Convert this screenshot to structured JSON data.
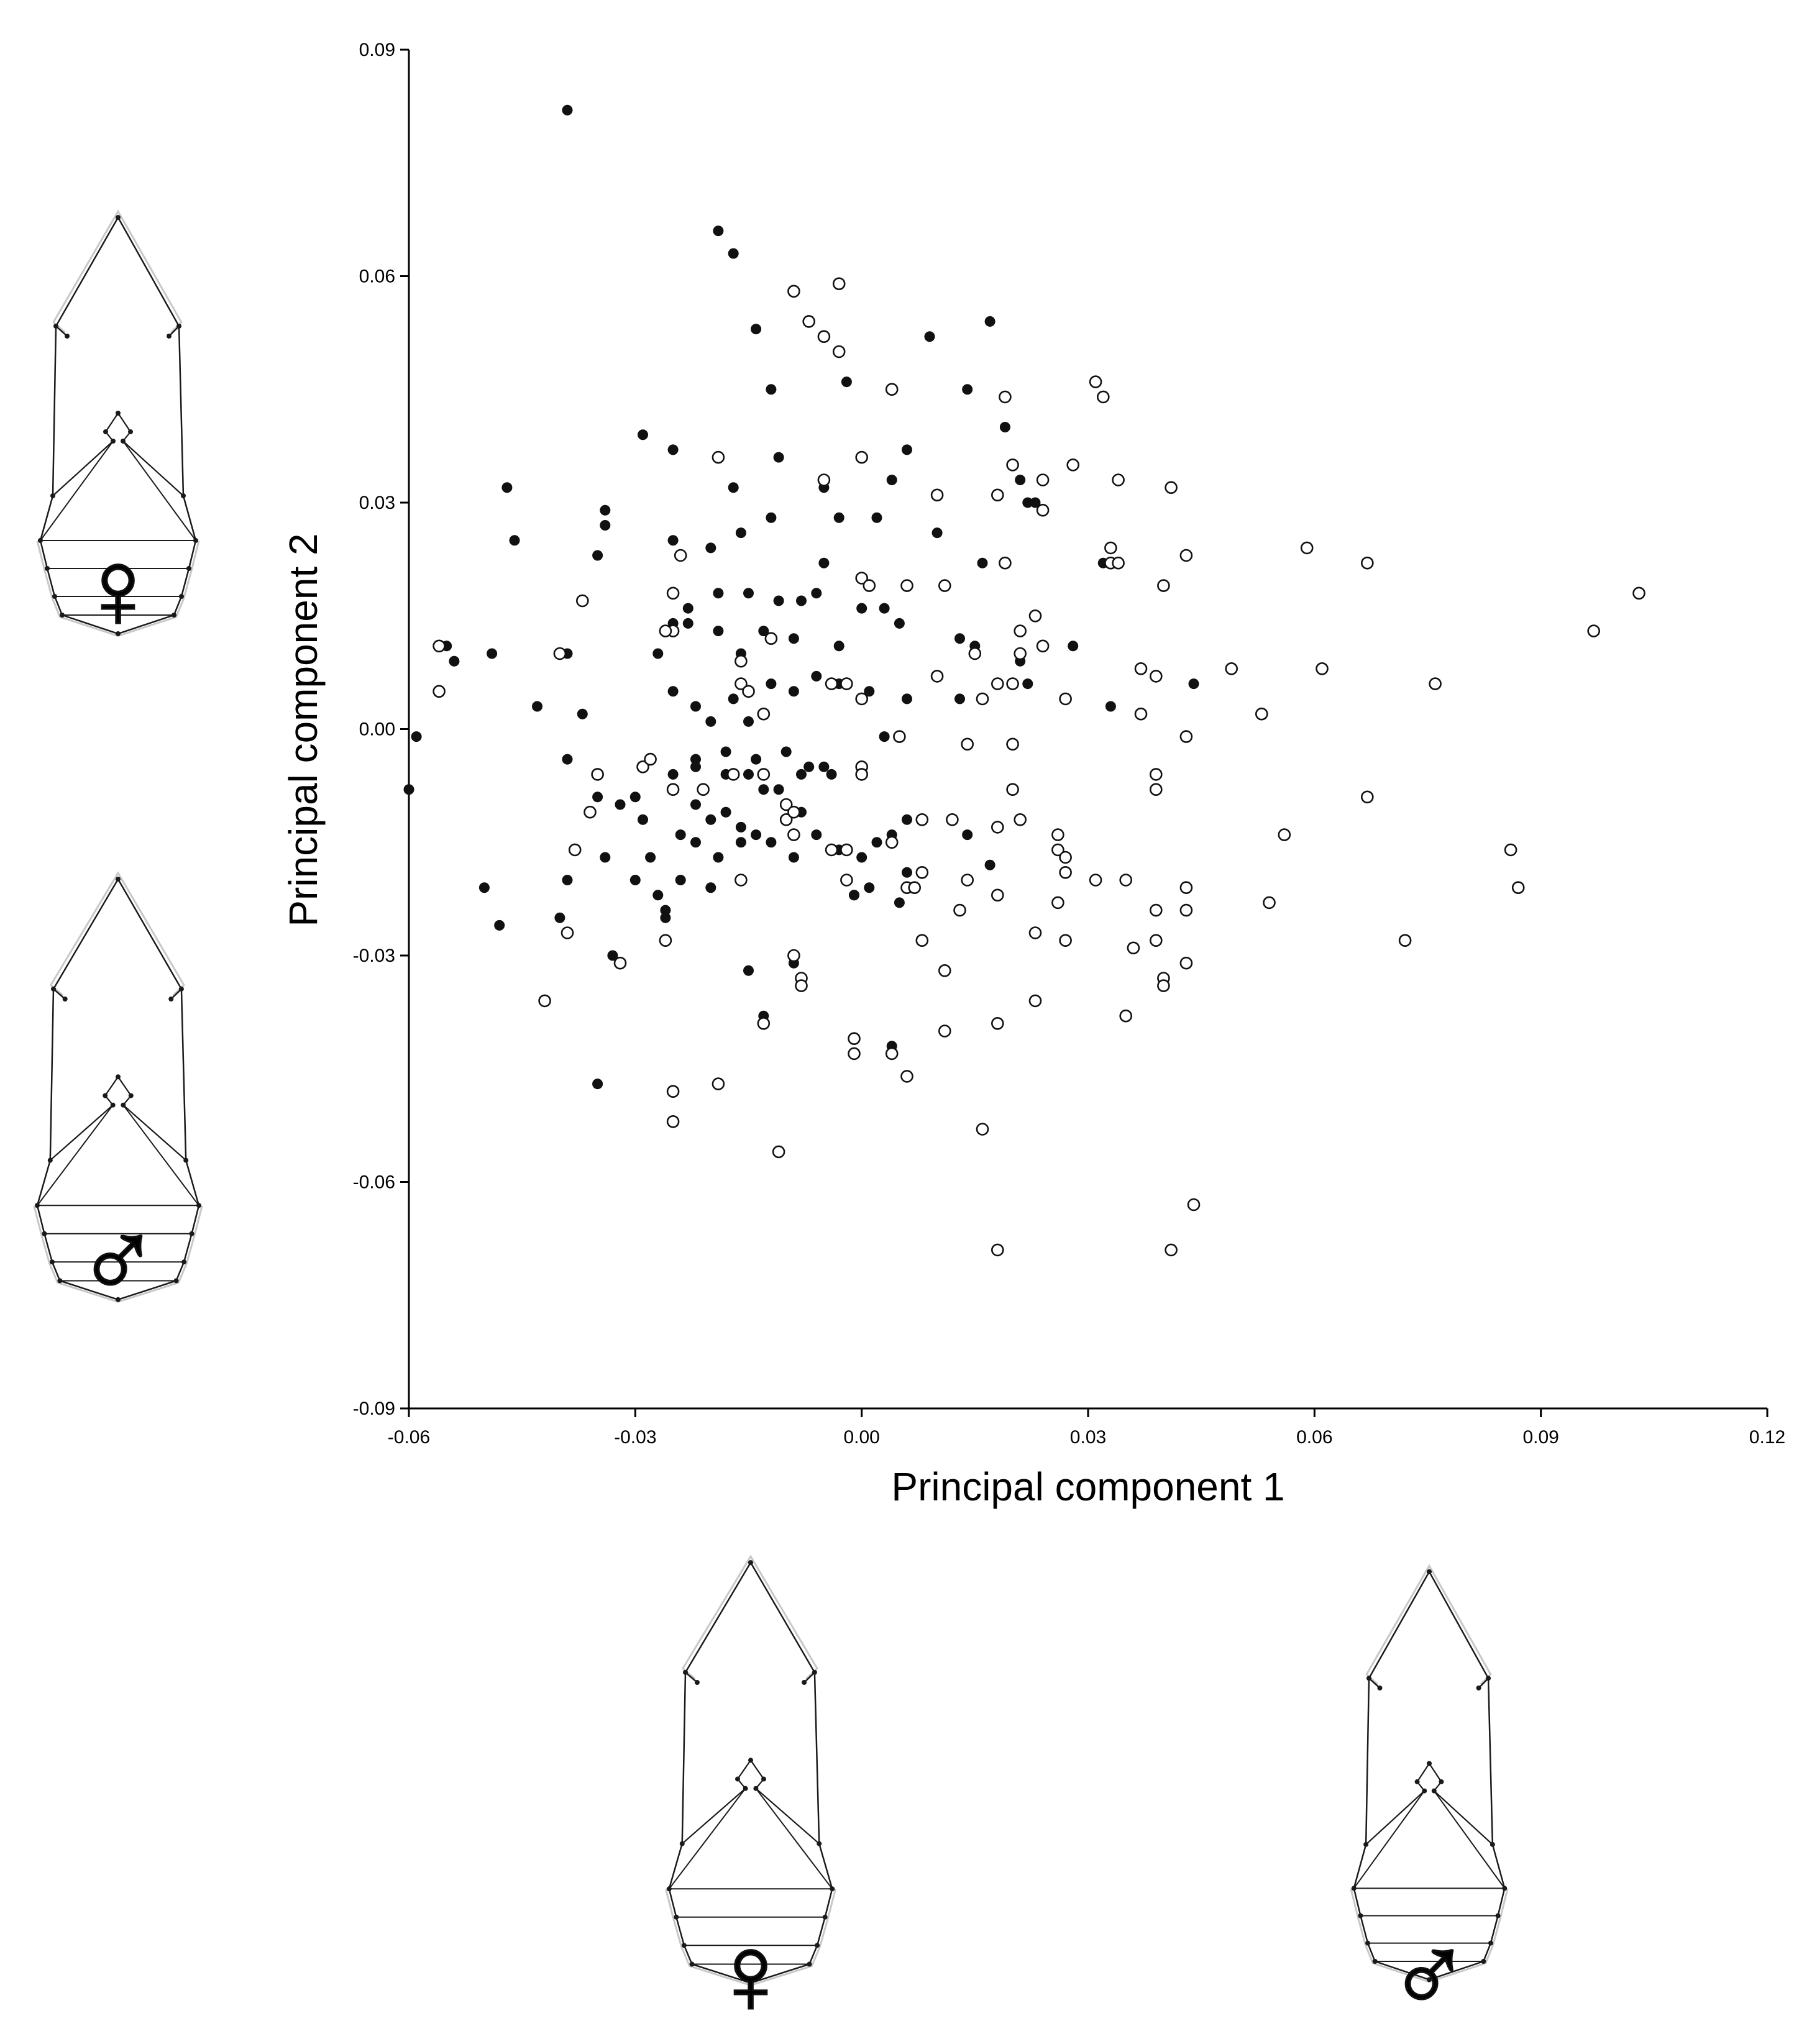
{
  "chart_data": {
    "type": "scatter",
    "title": "",
    "xlabel": "Principal component 1",
    "ylabel": "Principal component 2",
    "xlim": [
      -0.06,
      0.12
    ],
    "ylim": [
      -0.09,
      0.09
    ],
    "x_ticks": [
      "-0.06",
      "-0.03",
      "0.00",
      "0.03",
      "0.06",
      "0.09",
      "0.12"
    ],
    "y_ticks": [
      "0.09",
      "0.06",
      "0.03",
      "0.00",
      "-0.03",
      "-0.06",
      "-0.09"
    ],
    "grid": false,
    "legend": "none",
    "series": [
      {
        "marker": "filled-circle",
        "color": "#111111",
        "points": [
          [
            -0.039,
            0.082
          ],
          [
            -0.019,
            0.066
          ],
          [
            -0.017,
            0.063
          ],
          [
            -0.014,
            0.053
          ],
          [
            -0.012,
            0.045
          ],
          [
            0.009,
            0.052
          ],
          [
            0.017,
            0.054
          ],
          [
            -0.002,
            0.046
          ],
          [
            0.014,
            0.045
          ],
          [
            0.019,
            0.04
          ],
          [
            0.028,
            0.035
          ],
          [
            0.006,
            0.037
          ],
          [
            -0.011,
            0.036
          ],
          [
            0.021,
            0.033
          ],
          [
            0.022,
            0.03
          ],
          [
            -0.029,
            0.039
          ],
          [
            -0.025,
            0.037
          ],
          [
            -0.047,
            0.032
          ],
          [
            -0.046,
            0.025
          ],
          [
            -0.034,
            0.029
          ],
          [
            -0.034,
            0.027
          ],
          [
            -0.035,
            0.023
          ],
          [
            -0.017,
            0.032
          ],
          [
            -0.016,
            0.026
          ],
          [
            -0.02,
            0.024
          ],
          [
            -0.025,
            0.025
          ],
          [
            -0.012,
            0.028
          ],
          [
            -0.005,
            0.032
          ],
          [
            -0.003,
            0.028
          ],
          [
            0.002,
            0.028
          ],
          [
            0.004,
            0.033
          ],
          [
            0.01,
            0.026
          ],
          [
            0.016,
            0.022
          ],
          [
            0.023,
            0.03
          ],
          [
            0.032,
            0.022
          ],
          [
            -0.005,
            0.022
          ],
          [
            -0.008,
            0.017
          ],
          [
            -0.011,
            0.017
          ],
          [
            -0.015,
            0.018
          ],
          [
            -0.019,
            0.018
          ],
          [
            -0.023,
            0.016
          ],
          [
            -0.027,
            0.01
          ],
          [
            -0.025,
            0.014
          ],
          [
            -0.023,
            0.014
          ],
          [
            -0.019,
            0.013
          ],
          [
            -0.016,
            0.01
          ],
          [
            -0.013,
            0.013
          ],
          [
            -0.009,
            0.012
          ],
          [
            -0.006,
            0.018
          ],
          [
            -0.003,
            0.011
          ],
          [
            0.0,
            0.016
          ],
          [
            0.003,
            0.016
          ],
          [
            0.005,
            0.014
          ],
          [
            0.006,
            0.019
          ],
          [
            -0.055,
            0.011
          ],
          [
            -0.054,
            0.009
          ],
          [
            -0.049,
            0.01
          ],
          [
            -0.039,
            0.01
          ],
          [
            -0.043,
            0.003
          ],
          [
            -0.037,
            0.002
          ],
          [
            -0.039,
            -0.004
          ],
          [
            -0.035,
            -0.009
          ],
          [
            -0.036,
            -0.011
          ],
          [
            -0.034,
            -0.017
          ],
          [
            -0.03,
            -0.009
          ],
          [
            -0.029,
            -0.012
          ],
          [
            -0.028,
            -0.017
          ],
          [
            -0.03,
            -0.02
          ],
          [
            -0.027,
            -0.022
          ],
          [
            -0.026,
            -0.025
          ],
          [
            -0.024,
            -0.02
          ],
          [
            -0.022,
            -0.015
          ],
          [
            -0.02,
            -0.012
          ],
          [
            -0.018,
            -0.011
          ],
          [
            -0.016,
            -0.013
          ],
          [
            -0.014,
            -0.014
          ],
          [
            -0.012,
            -0.015
          ],
          [
            -0.009,
            -0.017
          ],
          [
            -0.006,
            -0.014
          ],
          [
            -0.003,
            -0.016
          ],
          [
            0.0,
            -0.017
          ],
          [
            0.002,
            -0.015
          ],
          [
            0.004,
            -0.014
          ],
          [
            0.006,
            -0.019
          ],
          [
            -0.001,
            -0.022
          ],
          [
            -0.02,
            -0.021
          ],
          [
            -0.015,
            -0.032
          ],
          [
            -0.013,
            -0.038
          ],
          [
            -0.009,
            -0.031
          ],
          [
            0.005,
            -0.023
          ],
          [
            0.004,
            -0.042
          ],
          [
            -0.035,
            -0.047
          ],
          [
            -0.048,
            -0.026
          ],
          [
            -0.05,
            -0.021
          ],
          [
            -0.04,
            -0.025
          ],
          [
            -0.039,
            -0.027
          ],
          [
            -0.039,
            -0.02
          ],
          [
            -0.033,
            -0.03
          ],
          [
            -0.06,
            -0.008
          ],
          [
            -0.059,
            -0.001
          ],
          [
            -0.025,
            0.005
          ],
          [
            -0.022,
            0.003
          ],
          [
            -0.02,
            0.001
          ],
          [
            -0.017,
            0.004
          ],
          [
            -0.015,
            0.001
          ],
          [
            -0.012,
            0.006
          ],
          [
            -0.009,
            0.005
          ],
          [
            -0.006,
            0.007
          ],
          [
            -0.003,
            0.006
          ],
          [
            0.001,
            0.005
          ],
          [
            -0.018,
            -0.003
          ],
          [
            -0.014,
            -0.004
          ],
          [
            -0.01,
            -0.003
          ],
          [
            -0.007,
            -0.005
          ],
          [
            -0.004,
            -0.006
          ],
          [
            -0.022,
            -0.004
          ],
          [
            -0.025,
            -0.006
          ],
          [
            0.006,
            0.004
          ],
          [
            0.006,
            -0.012
          ],
          [
            0.003,
            -0.001
          ],
          [
            0.013,
            0.004
          ],
          [
            0.013,
            0.012
          ],
          [
            0.015,
            0.011
          ],
          [
            0.022,
            0.006
          ],
          [
            0.021,
            0.009
          ],
          [
            0.028,
            0.011
          ],
          [
            0.033,
            0.003
          ],
          [
            0.044,
            0.006
          ],
          [
            0.014,
            -0.014
          ],
          [
            0.017,
            -0.018
          ],
          [
            -0.022,
            -0.005
          ],
          [
            -0.018,
            -0.006
          ],
          [
            -0.016,
            -0.015
          ],
          [
            -0.013,
            -0.008
          ],
          [
            -0.024,
            -0.014
          ],
          [
            -0.026,
            -0.024
          ],
          [
            -0.022,
            -0.01
          ],
          [
            -0.019,
            -0.017
          ],
          [
            -0.015,
            -0.006
          ],
          [
            -0.011,
            -0.008
          ],
          [
            -0.008,
            -0.006
          ],
          [
            -0.005,
            -0.005
          ],
          [
            -0.008,
            -0.011
          ],
          [
            -0.001,
            -0.022
          ],
          [
            0.001,
            -0.021
          ],
          [
            -0.032,
            -0.01
          ]
        ]
      },
      {
        "marker": "open-circle",
        "color": "#111111",
        "points": [
          [
            -0.003,
            0.059
          ],
          [
            -0.009,
            0.058
          ],
          [
            -0.007,
            0.054
          ],
          [
            -0.005,
            0.052
          ],
          [
            -0.003,
            0.05
          ],
          [
            0.004,
            0.045
          ],
          [
            0.019,
            0.044
          ],
          [
            0.031,
            0.046
          ],
          [
            0.032,
            0.044
          ],
          [
            0.02,
            0.035
          ],
          [
            0.024,
            0.033
          ],
          [
            0.028,
            0.035
          ],
          [
            0.034,
            0.033
          ],
          [
            0.041,
            0.032
          ],
          [
            0.018,
            0.031
          ],
          [
            0.024,
            0.029
          ],
          [
            0.01,
            0.031
          ],
          [
            0.0,
            0.036
          ],
          [
            -0.005,
            0.033
          ],
          [
            -0.019,
            0.036
          ],
          [
            -0.037,
            0.017
          ],
          [
            -0.024,
            0.023
          ],
          [
            0.0,
            0.02
          ],
          [
            0.001,
            0.019
          ],
          [
            0.011,
            0.019
          ],
          [
            0.019,
            0.022
          ],
          [
            0.033,
            0.022
          ],
          [
            0.034,
            0.022
          ],
          [
            0.033,
            0.024
          ],
          [
            0.04,
            0.019
          ],
          [
            0.043,
            0.023
          ],
          [
            0.059,
            0.024
          ],
          [
            0.067,
            0.022
          ],
          [
            0.103,
            0.018
          ],
          [
            0.097,
            0.013
          ],
          [
            0.076,
            0.006
          ],
          [
            0.061,
            0.008
          ],
          [
            0.049,
            0.008
          ],
          [
            0.053,
            0.002
          ],
          [
            0.039,
            0.007
          ],
          [
            0.037,
            0.008
          ],
          [
            0.037,
            0.002
          ],
          [
            0.043,
            -0.001
          ],
          [
            0.027,
            0.004
          ],
          [
            0.023,
            0.015
          ],
          [
            0.024,
            0.011
          ],
          [
            0.021,
            0.013
          ],
          [
            0.021,
            0.01
          ],
          [
            0.02,
            0.006
          ],
          [
            0.018,
            0.006
          ],
          [
            0.016,
            0.004
          ],
          [
            0.015,
            0.01
          ],
          [
            0.01,
            0.007
          ],
          [
            0.006,
            0.019
          ],
          [
            0.005,
            -0.001
          ],
          [
            0.0,
            0.004
          ],
          [
            -0.002,
            0.006
          ],
          [
            -0.004,
            0.006
          ],
          [
            -0.012,
            0.012
          ],
          [
            -0.016,
            0.009
          ],
          [
            -0.016,
            0.006
          ],
          [
            -0.015,
            0.005
          ],
          [
            -0.013,
            0.002
          ],
          [
            -0.025,
            0.013
          ],
          [
            -0.026,
            0.013
          ],
          [
            -0.025,
            0.018
          ],
          [
            -0.04,
            0.01
          ],
          [
            -0.056,
            0.011
          ],
          [
            -0.056,
            0.005
          ],
          [
            -0.035,
            -0.006
          ],
          [
            -0.029,
            -0.005
          ],
          [
            -0.028,
            -0.004
          ],
          [
            -0.025,
            -0.008
          ],
          [
            -0.021,
            -0.008
          ],
          [
            -0.013,
            -0.006
          ],
          [
            -0.017,
            -0.006
          ],
          [
            -0.01,
            -0.01
          ],
          [
            -0.01,
            -0.012
          ],
          [
            -0.009,
            -0.011
          ],
          [
            -0.009,
            -0.014
          ],
          [
            -0.004,
            -0.016
          ],
          [
            -0.002,
            -0.016
          ],
          [
            0.0,
            -0.005
          ],
          [
            0.0,
            -0.006
          ],
          [
            0.004,
            -0.015
          ],
          [
            0.008,
            -0.012
          ],
          [
            -0.002,
            -0.02
          ],
          [
            0.006,
            -0.021
          ],
          [
            0.007,
            -0.021
          ],
          [
            0.008,
            -0.019
          ],
          [
            0.012,
            -0.012
          ],
          [
            0.013,
            -0.024
          ],
          [
            0.014,
            -0.02
          ],
          [
            0.014,
            -0.002
          ],
          [
            0.02,
            -0.002
          ],
          [
            0.021,
            -0.012
          ],
          [
            0.018,
            -0.013
          ],
          [
            0.02,
            -0.008
          ],
          [
            0.018,
            -0.022
          ],
          [
            0.026,
            -0.014
          ],
          [
            0.026,
            -0.016
          ],
          [
            0.027,
            -0.017
          ],
          [
            0.027,
            -0.019
          ],
          [
            0.026,
            -0.023
          ],
          [
            0.027,
            -0.028
          ],
          [
            0.023,
            -0.027
          ],
          [
            0.031,
            -0.02
          ],
          [
            0.035,
            -0.02
          ],
          [
            0.036,
            -0.029
          ],
          [
            0.039,
            -0.028
          ],
          [
            0.039,
            -0.024
          ],
          [
            0.039,
            -0.006
          ],
          [
            0.039,
            -0.008
          ],
          [
            0.043,
            -0.021
          ],
          [
            0.043,
            -0.024
          ],
          [
            0.043,
            -0.031
          ],
          [
            0.04,
            -0.033
          ],
          [
            0.04,
            -0.034
          ],
          [
            0.035,
            -0.038
          ],
          [
            0.023,
            -0.036
          ],
          [
            0.018,
            -0.039
          ],
          [
            0.016,
            -0.053
          ],
          [
            0.018,
            -0.069
          ],
          [
            0.041,
            -0.069
          ],
          [
            0.044,
            -0.063
          ],
          [
            0.011,
            -0.032
          ],
          [
            0.011,
            -0.04
          ],
          [
            0.008,
            -0.028
          ],
          [
            0.006,
            -0.046
          ],
          [
            0.004,
            -0.043
          ],
          [
            -0.001,
            -0.041
          ],
          [
            -0.001,
            -0.043
          ],
          [
            -0.009,
            -0.03
          ],
          [
            -0.008,
            -0.033
          ],
          [
            -0.008,
            -0.034
          ],
          [
            -0.013,
            -0.039
          ],
          [
            -0.016,
            -0.02
          ],
          [
            -0.019,
            -0.047
          ],
          [
            -0.011,
            -0.056
          ],
          [
            -0.025,
            -0.048
          ],
          [
            -0.025,
            -0.052
          ],
          [
            -0.026,
            -0.028
          ],
          [
            -0.032,
            -0.031
          ],
          [
            -0.039,
            -0.027
          ],
          [
            -0.042,
            -0.036
          ],
          [
            -0.038,
            -0.016
          ],
          [
            -0.036,
            -0.011
          ],
          [
            0.056,
            -0.014
          ],
          [
            0.054,
            -0.023
          ],
          [
            0.067,
            -0.009
          ],
          [
            0.072,
            -0.028
          ],
          [
            0.086,
            -0.016
          ],
          [
            0.087,
            -0.021
          ]
        ]
      }
    ]
  },
  "insets": [
    {
      "id": "pc2-positive",
      "symbol": "♀"
    },
    {
      "id": "pc2-negative",
      "symbol": "♂"
    },
    {
      "id": "pc1-negative",
      "symbol": "♀"
    },
    {
      "id": "pc1-positive",
      "symbol": "♂"
    }
  ],
  "colors": {
    "axis": "#000000",
    "marker": "#111111",
    "outline": "#1a1a1a",
    "consensus": "#c8c8c8"
  }
}
